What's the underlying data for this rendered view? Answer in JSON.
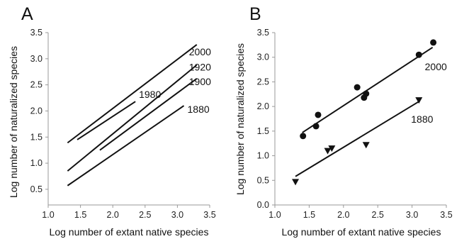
{
  "chart_data": [
    {
      "panel_label": "A",
      "type": "line",
      "xlabel": "Log number of extant native species",
      "ylabel": "Log number of naturalized species",
      "xlim": [
        1.0,
        3.5
      ],
      "ylim": [
        0.2,
        3.5
      ],
      "x_ticks": [
        "1.0",
        "1.5",
        "2.0",
        "2.5",
        "3.0",
        "3.5"
      ],
      "y_ticks": [
        "0.5",
        "1.0",
        "1.5",
        "2.0",
        "2.5",
        "3.0",
        "3.5"
      ],
      "grid": false,
      "series": [
        {
          "name": "2000",
          "x": [
            1.3,
            3.3
          ],
          "y": [
            1.39,
            3.27
          ]
        },
        {
          "name": "1920",
          "x": [
            1.3,
            3.3
          ],
          "y": [
            0.85,
            2.88
          ]
        },
        {
          "name": "1900",
          "x": [
            1.8,
            3.3
          ],
          "y": [
            1.25,
            2.62
          ]
        },
        {
          "name": "1880",
          "x": [
            1.3,
            3.1
          ],
          "y": [
            0.57,
            2.1
          ]
        },
        {
          "name": "1980",
          "x": [
            1.45,
            2.35
          ],
          "y": [
            1.45,
            2.18
          ]
        }
      ]
    },
    {
      "panel_label": "B",
      "type": "scatter",
      "xlabel": "Log number of extant native species",
      "ylabel": "Log number of naturalized species",
      "xlim": [
        1.0,
        3.5
      ],
      "ylim": [
        0.0,
        3.5
      ],
      "x_ticks": [
        "1.0",
        "1.5",
        "2.0",
        "2.5",
        "3.0",
        "3.5"
      ],
      "y_ticks": [
        "0.0",
        "0.5",
        "1.0",
        "1.5",
        "2.0",
        "2.5",
        "3.0",
        "3.5"
      ],
      "grid": false,
      "series": [
        {
          "name": "2000",
          "marker": "circle",
          "x": [
            1.41,
            1.6,
            1.63,
            2.2,
            2.3,
            2.33,
            3.1,
            3.31
          ],
          "y": [
            1.4,
            1.6,
            1.83,
            2.39,
            2.18,
            2.26,
            3.05,
            3.3
          ],
          "fit": {
            "x": [
              1.4,
              3.3
            ],
            "y": [
              1.47,
              3.2
            ]
          }
        },
        {
          "name": "1880",
          "marker": "triangle-down",
          "x": [
            1.3,
            1.77,
            1.83,
            2.33,
            3.1
          ],
          "y": [
            0.47,
            1.1,
            1.15,
            1.22,
            2.13
          ],
          "fit": {
            "x": [
              1.3,
              3.1
            ],
            "y": [
              0.58,
              2.1
            ]
          }
        }
      ]
    }
  ]
}
